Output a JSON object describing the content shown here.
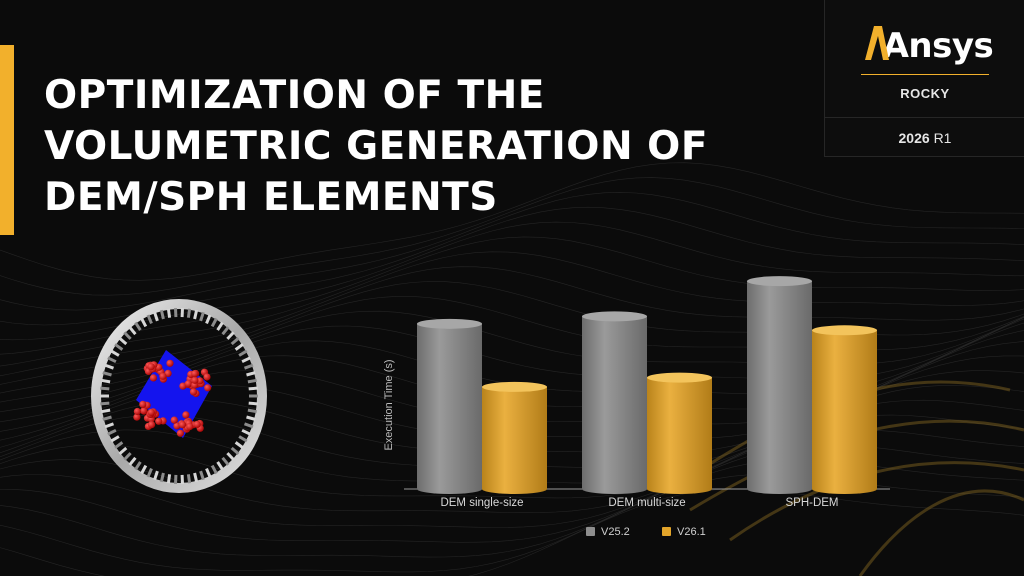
{
  "title": {
    "lines": [
      "OPTIMIZATION OF THE",
      "VOLUMETRIC GENERATION OF",
      "DEM/SPH ELEMENTS"
    ]
  },
  "brand": {
    "logo": "Ansys",
    "product": "ROCKY",
    "release_year": "2026",
    "release_suffix": "R1"
  },
  "colors": {
    "accent": "#f2b02c",
    "series_v252": "#8e8e8e",
    "series_v261": "#e3a52a",
    "background": "#0b0b0b"
  },
  "chart_data": {
    "type": "bar",
    "style": "3d-cylinder",
    "ylabel": "Execution Time (s)",
    "xlabel": "",
    "categories": [
      "DEM single-size",
      "DEM multi-size",
      "SPH-DEM"
    ],
    "series": [
      {
        "name": "V25.2",
        "values": [
          17.8,
          18.6,
          22.4
        ],
        "color": "#8e8e8e"
      },
      {
        "name": "V26.1",
        "values": [
          11.0,
          12.0,
          17.1
        ],
        "color": "#e3a52a"
      }
    ],
    "ylim": [
      0,
      25
    ],
    "grid": false,
    "legend": "bottom-center"
  }
}
